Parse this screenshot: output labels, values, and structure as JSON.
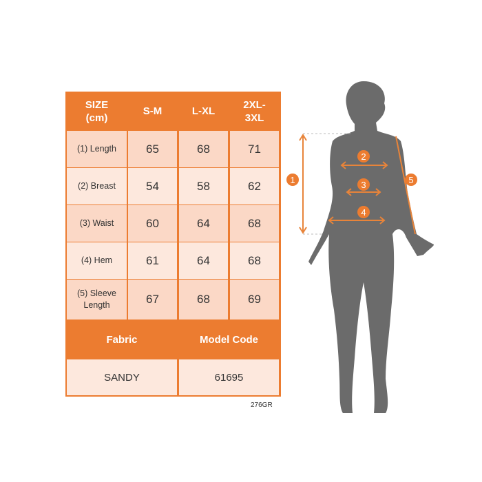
{
  "size_table": {
    "headers": [
      "SIZE\n(cm)",
      "S-M",
      "L-XL",
      "2XL-\n3XL"
    ],
    "rows": [
      {
        "label": "(1) Length",
        "values": [
          "65",
          "68",
          "71"
        ]
      },
      {
        "label": "(2) Breast",
        "values": [
          "54",
          "58",
          "62"
        ]
      },
      {
        "label": "(3) Waist",
        "values": [
          "60",
          "64",
          "68"
        ]
      },
      {
        "label": "(4) Hem",
        "values": [
          "61",
          "64",
          "68"
        ]
      },
      {
        "label": "(5) Sleeve\nLength",
        "values": [
          "67",
          "68",
          "69"
        ]
      }
    ],
    "footer_headers": [
      "Fabric",
      "Model Code"
    ],
    "footer_values": [
      "SANDY",
      "61695"
    ]
  },
  "caption": "276GR",
  "diagram": {
    "markers": [
      "1",
      "2",
      "3",
      "4",
      "5"
    ]
  },
  "colors": {
    "accent": "#ec7c30",
    "cell_dark": "#fbd8c6",
    "cell_light": "#fde8dd",
    "silhouette": "#6b6b6b"
  }
}
